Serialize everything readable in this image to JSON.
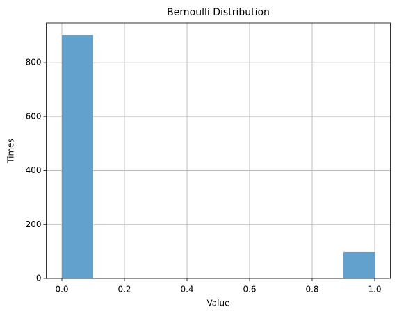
{
  "chart_data": {
    "type": "histogram",
    "title": "Bernoulli Distribution",
    "x_label": "Value",
    "y_label": "Times",
    "bins": [
      0,
      0.1,
      0.2,
      0.3,
      0.4,
      0.5,
      0.6,
      0.7,
      0.8,
      0.9,
      1
    ],
    "values": [
      902,
      0,
      0,
      0,
      0,
      0,
      0,
      0,
      0,
      98
    ],
    "color": "#62a0cd",
    "xlim": [
      -0.05,
      1.05
    ],
    "xticks": [
      {
        "value": 0,
        "label": "0.0"
      },
      0.2,
      0.4,
      0.6,
      0.8,
      {
        "value": 1,
        "label": "1.0"
      }
    ],
    "ylim": [
      0,
      947
    ],
    "yticks": [
      0,
      200,
      400,
      600,
      800
    ],
    "grid": true
  }
}
